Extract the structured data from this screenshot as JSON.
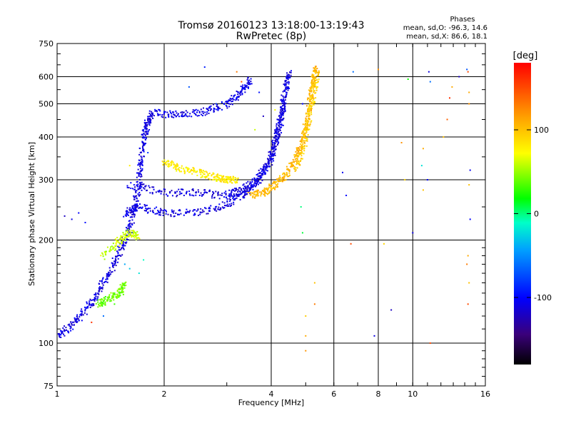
{
  "chart_data": {
    "type": "scatter",
    "title": "Tromsø 20160123 13:18:00-13:19:43",
    "subtitle": "RwPretec (8p)",
    "xlabel": "Frequency [MHz]",
    "ylabel": "Stationary phase Virtual Height [km]",
    "x_scale": "log",
    "y_scale": "log",
    "xlim": [
      1,
      16
    ],
    "ylim": [
      75,
      750
    ],
    "x_ticks": [
      1,
      2,
      4,
      6,
      8,
      10,
      16
    ],
    "y_ticks": [
      75,
      100,
      200,
      300,
      400,
      500,
      600,
      750
    ],
    "grid": true,
    "phase_info": {
      "title": "Phases",
      "line_o": "mean, sd,O: -96.3, 14.6",
      "line_x": "mean, sd,X:  86.6, 18.1"
    },
    "colorbar": {
      "label": "[deg]",
      "range": [
        -180,
        180
      ],
      "ticks": [
        100,
        0,
        -100
      ]
    },
    "traces": [
      {
        "points": [
          [
            1.0,
            105
          ],
          [
            1.1,
            112
          ],
          [
            1.2,
            125
          ],
          [
            1.3,
            140
          ],
          [
            1.4,
            160
          ],
          [
            1.5,
            185
          ],
          [
            1.6,
            215
          ],
          [
            1.65,
            250
          ],
          [
            1.7,
            290
          ],
          [
            1.72,
            340
          ],
          [
            1.75,
            400
          ],
          [
            1.8,
            440
          ],
          [
            1.85,
            470
          ]
        ],
        "phase": -110
      },
      {
        "points": [
          [
            1.55,
            240
          ],
          [
            1.7,
            250
          ],
          [
            2.0,
            240
          ],
          [
            2.5,
            240
          ],
          [
            3.0,
            255
          ],
          [
            3.4,
            275
          ],
          [
            3.7,
            300
          ],
          [
            4.0,
            345
          ],
          [
            4.15,
            410
          ],
          [
            4.3,
            480
          ],
          [
            4.4,
            560
          ],
          [
            4.5,
            620
          ]
        ],
        "phase": -110
      },
      {
        "points": [
          [
            1.9,
            470
          ],
          [
            2.2,
            465
          ],
          [
            2.6,
            475
          ],
          [
            3.0,
            500
          ],
          [
            3.3,
            540
          ],
          [
            3.5,
            590
          ]
        ],
        "phase": -108
      },
      {
        "points": [
          [
            1.6,
            290
          ],
          [
            2.0,
            275
          ],
          [
            2.5,
            275
          ],
          [
            3.0,
            270
          ],
          [
            3.3,
            280
          ],
          [
            3.6,
            295
          ],
          [
            3.9,
            330
          ],
          [
            4.1,
            380
          ],
          [
            4.25,
            440
          ],
          [
            4.35,
            520
          ]
        ],
        "phase": -112
      },
      {
        "points": [
          [
            2.0,
            340
          ],
          [
            2.2,
            325
          ],
          [
            2.5,
            315
          ],
          [
            2.8,
            305
          ],
          [
            3.0,
            300
          ],
          [
            3.2,
            298
          ]
        ],
        "phase": 80
      },
      {
        "points": [
          [
            3.5,
            270
          ],
          [
            3.8,
            275
          ],
          [
            4.1,
            290
          ],
          [
            4.4,
            310
          ],
          [
            4.7,
            345
          ],
          [
            4.9,
            390
          ],
          [
            5.05,
            440
          ],
          [
            5.15,
            510
          ],
          [
            5.25,
            580
          ],
          [
            5.35,
            640
          ]
        ],
        "phase": 105
      },
      {
        "points": [
          [
            4.7,
            320
          ],
          [
            4.95,
            380
          ],
          [
            5.1,
            450
          ],
          [
            5.25,
            530
          ],
          [
            5.4,
            620
          ]
        ],
        "phase": 95
      },
      {
        "points": [
          [
            1.35,
            180
          ],
          [
            1.5,
            200
          ],
          [
            1.6,
            210
          ],
          [
            1.7,
            205
          ]
        ],
        "phase": 60
      },
      {
        "points": [
          [
            1.3,
            130
          ],
          [
            1.4,
            135
          ],
          [
            1.5,
            140
          ],
          [
            1.55,
            150
          ]
        ],
        "phase": 40
      }
    ],
    "scattered_points": [
      [
        1.05,
        235,
        -120
      ],
      [
        1.1,
        230,
        -110
      ],
      [
        1.15,
        240,
        -100
      ],
      [
        1.2,
        225,
        -95
      ],
      [
        1.45,
        130,
        30
      ],
      [
        1.55,
        170,
        -40
      ],
      [
        1.6,
        165,
        -30
      ],
      [
        1.7,
        160,
        -20
      ],
      [
        1.75,
        175,
        -10
      ],
      [
        1.35,
        120,
        -60
      ],
      [
        1.25,
        115,
        160
      ],
      [
        1.6,
        330,
        80
      ],
      [
        1.75,
        420,
        -90
      ],
      [
        1.8,
        360,
        -80
      ],
      [
        2.35,
        560,
        -70
      ],
      [
        2.6,
        640,
        -90
      ],
      [
        2.8,
        500,
        -85
      ],
      [
        3.2,
        620,
        130
      ],
      [
        3.6,
        420,
        60
      ],
      [
        3.8,
        460,
        -120
      ],
      [
        4.1,
        480,
        70
      ],
      [
        4.9,
        210,
        10
      ],
      [
        4.9,
        500,
        -100
      ],
      [
        4.85,
        250,
        0
      ],
      [
        3.3,
        580,
        150
      ],
      [
        3.7,
        540,
        -95
      ],
      [
        5.0,
        105,
        110
      ],
      [
        5.0,
        120,
        95
      ],
      [
        5.0,
        95,
        120
      ],
      [
        5.3,
        150,
        100
      ],
      [
        5.3,
        130,
        130
      ],
      [
        6.35,
        315,
        -105
      ],
      [
        6.5,
        270,
        -100
      ],
      [
        6.7,
        195,
        150
      ],
      [
        6.8,
        620,
        -60
      ],
      [
        7.8,
        105,
        -110
      ],
      [
        8.0,
        630,
        120
      ],
      [
        8.3,
        195,
        90
      ],
      [
        8.7,
        125,
        -120
      ],
      [
        9.3,
        385,
        120
      ],
      [
        9.5,
        300,
        90
      ],
      [
        9.7,
        590,
        20
      ],
      [
        10.0,
        210,
        -110
      ],
      [
        10.6,
        330,
        -20
      ],
      [
        10.7,
        370,
        110
      ],
      [
        10.7,
        280,
        100
      ],
      [
        11.0,
        300,
        -100
      ],
      [
        11.2,
        100,
        150
      ],
      [
        11.1,
        620,
        -110
      ],
      [
        11.2,
        580,
        -60
      ],
      [
        12.2,
        400,
        100
      ],
      [
        12.5,
        450,
        140
      ],
      [
        12.7,
        520,
        160
      ],
      [
        12.9,
        560,
        110
      ],
      [
        13.5,
        600,
        -120
      ],
      [
        14.2,
        630,
        -70
      ],
      [
        14.3,
        620,
        150
      ],
      [
        14.4,
        540,
        110
      ],
      [
        14.4,
        500,
        120
      ],
      [
        14.5,
        320,
        -105
      ],
      [
        14.4,
        290,
        100
      ],
      [
        14.5,
        230,
        -100
      ],
      [
        14.3,
        180,
        110
      ],
      [
        14.2,
        170,
        130
      ],
      [
        14.3,
        130,
        150
      ],
      [
        14.4,
        150,
        100
      ]
    ]
  }
}
